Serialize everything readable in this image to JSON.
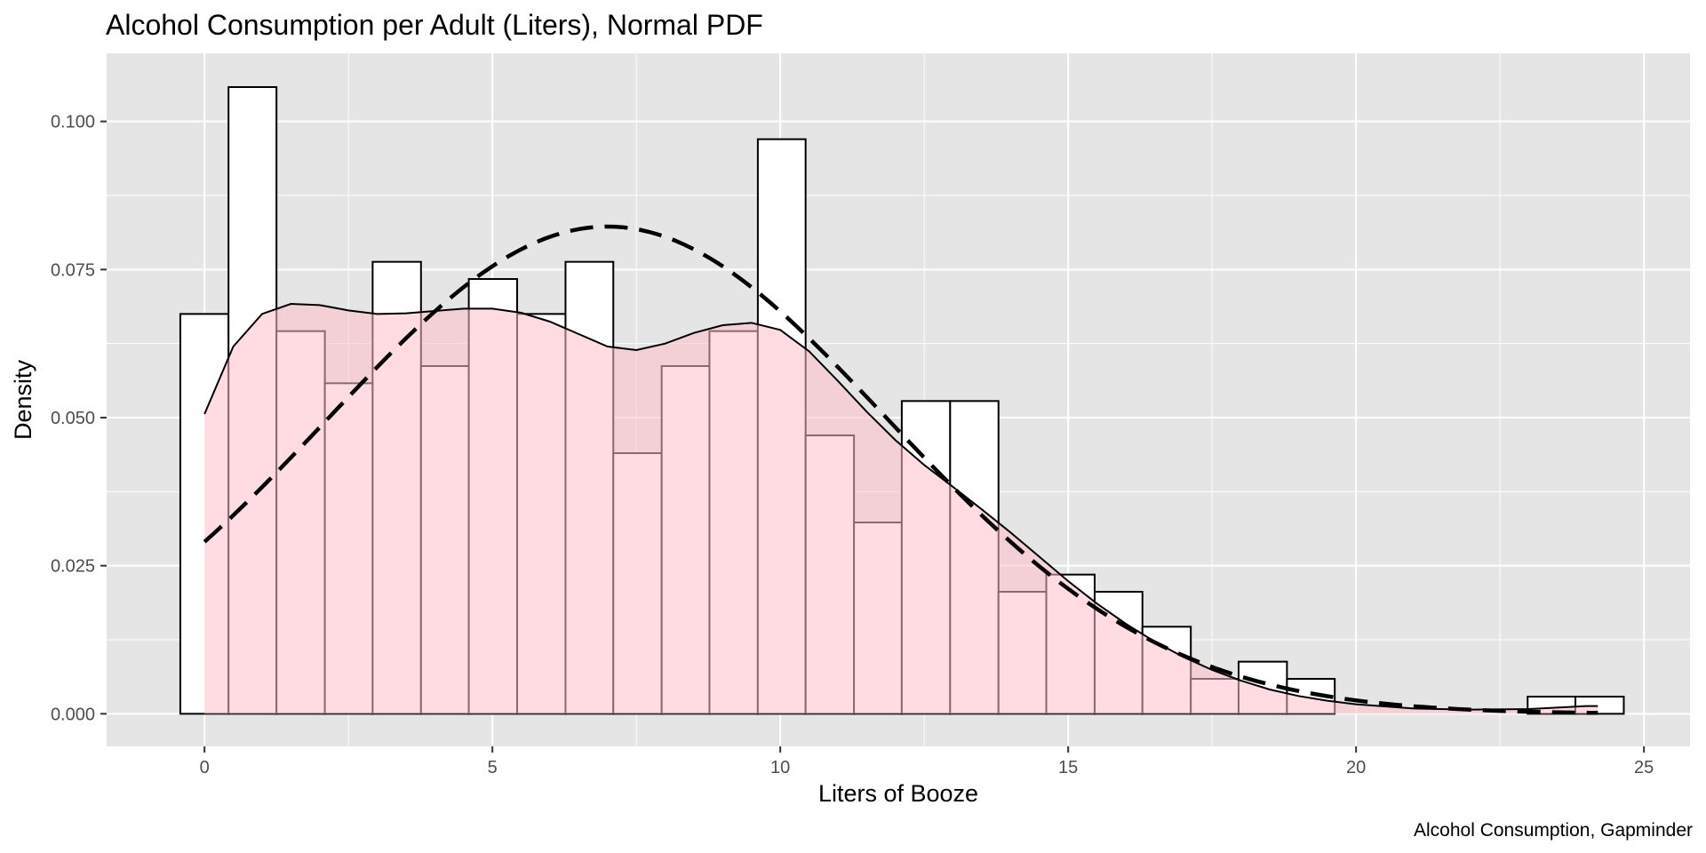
{
  "chart_data": {
    "type": "histogram",
    "title": "Alcohol Consumption per Adult (Liters), Normal PDF",
    "xlabel": "Liters of Booze",
    "ylabel": "Density",
    "caption": "Alcohol Consumption, Gapminder",
    "xlim": [
      -1.7,
      25.8
    ],
    "ylim": [
      -0.0055,
      0.1115
    ],
    "x_ticks": [
      0,
      5,
      10,
      15,
      20,
      25
    ],
    "x_tick_labels": [
      "0",
      "5",
      "10",
      "15",
      "20",
      "25"
    ],
    "y_ticks": [
      0.0,
      0.025,
      0.05,
      0.075,
      0.1
    ],
    "y_tick_labels": [
      "0.000",
      "0.025",
      "0.050",
      "0.075",
      "0.100"
    ],
    "grid": true,
    "background": "#e5e5e5",
    "colors": {
      "bar_fill": "#ffffff",
      "bar_outline": "#000000",
      "density_fill": "#ffc0cb",
      "density_fill_opacity": 0.55,
      "grid_major": "#ffffff",
      "tick_text": "#4d4d4d"
    },
    "bins": [
      {
        "x0": -0.42,
        "x1": 0.417,
        "density": 0.0675
      },
      {
        "x0": 0.417,
        "x1": 1.25,
        "density": 0.1058
      },
      {
        "x0": 1.25,
        "x1": 2.09,
        "density": 0.0646
      },
      {
        "x0": 2.09,
        "x1": 2.92,
        "density": 0.0558
      },
      {
        "x0": 2.92,
        "x1": 3.76,
        "density": 0.0763
      },
      {
        "x0": 3.76,
        "x1": 4.59,
        "density": 0.0587
      },
      {
        "x0": 4.59,
        "x1": 5.43,
        "density": 0.0734
      },
      {
        "x0": 5.43,
        "x1": 6.27,
        "density": 0.0675
      },
      {
        "x0": 6.27,
        "x1": 7.1,
        "density": 0.0763
      },
      {
        "x0": 7.1,
        "x1": 7.94,
        "density": 0.044
      },
      {
        "x0": 7.94,
        "x1": 8.77,
        "density": 0.0587
      },
      {
        "x0": 8.77,
        "x1": 9.61,
        "density": 0.0646
      },
      {
        "x0": 9.61,
        "x1": 10.44,
        "density": 0.097
      },
      {
        "x0": 10.44,
        "x1": 11.28,
        "density": 0.047
      },
      {
        "x0": 11.28,
        "x1": 12.11,
        "density": 0.0323
      },
      {
        "x0": 12.11,
        "x1": 12.95,
        "density": 0.0528
      },
      {
        "x0": 12.95,
        "x1": 13.79,
        "density": 0.0528
      },
      {
        "x0": 13.79,
        "x1": 14.62,
        "density": 0.0206
      },
      {
        "x0": 14.62,
        "x1": 15.46,
        "density": 0.0235
      },
      {
        "x0": 15.46,
        "x1": 16.29,
        "density": 0.0206
      },
      {
        "x0": 16.29,
        "x1": 17.13,
        "density": 0.0147
      },
      {
        "x0": 17.13,
        "x1": 17.96,
        "density": 0.0059
      },
      {
        "x0": 17.96,
        "x1": 18.8,
        "density": 0.0088
      },
      {
        "x0": 18.8,
        "x1": 19.63,
        "density": 0.0059
      },
      {
        "x0": 19.63,
        "x1": 20.47,
        "density": 0.0
      },
      {
        "x0": 20.47,
        "x1": 21.3,
        "density": 0.0
      },
      {
        "x0": 21.3,
        "x1": 22.14,
        "density": 0.0
      },
      {
        "x0": 22.14,
        "x1": 22.98,
        "density": 0.0
      },
      {
        "x0": 22.98,
        "x1": 23.81,
        "density": 0.0029
      },
      {
        "x0": 23.81,
        "x1": 24.65,
        "density": 0.0029
      }
    ],
    "kde": {
      "x": [
        0,
        0.5,
        1,
        1.5,
        2,
        2.5,
        3,
        3.5,
        4,
        4.5,
        5,
        5.5,
        6,
        6.5,
        7,
        7.5,
        8,
        8.5,
        9,
        9.5,
        10,
        10.5,
        11,
        11.5,
        12,
        12.5,
        13,
        13.5,
        14,
        14.5,
        15,
        15.5,
        16,
        16.5,
        17,
        17.5,
        18,
        18.5,
        19,
        19.5,
        20,
        21,
        22,
        23,
        24,
        24.2
      ],
      "y": [
        0.0506,
        0.062,
        0.0675,
        0.0692,
        0.069,
        0.0681,
        0.0675,
        0.0676,
        0.068,
        0.0684,
        0.0684,
        0.0677,
        0.0662,
        0.0641,
        0.062,
        0.0614,
        0.0625,
        0.0643,
        0.0656,
        0.066,
        0.0648,
        0.0612,
        0.0562,
        0.051,
        0.0462,
        0.042,
        0.0383,
        0.0345,
        0.0306,
        0.0265,
        0.0224,
        0.0186,
        0.0152,
        0.0122,
        0.0096,
        0.0074,
        0.0056,
        0.0041,
        0.003,
        0.0022,
        0.0016,
        0.0009,
        0.0007,
        0.0008,
        0.0013,
        0.0013
      ]
    },
    "normal_pdf": {
      "mean": 7.0,
      "sd": 4.85,
      "x_range": [
        0,
        24.2
      ]
    }
  }
}
